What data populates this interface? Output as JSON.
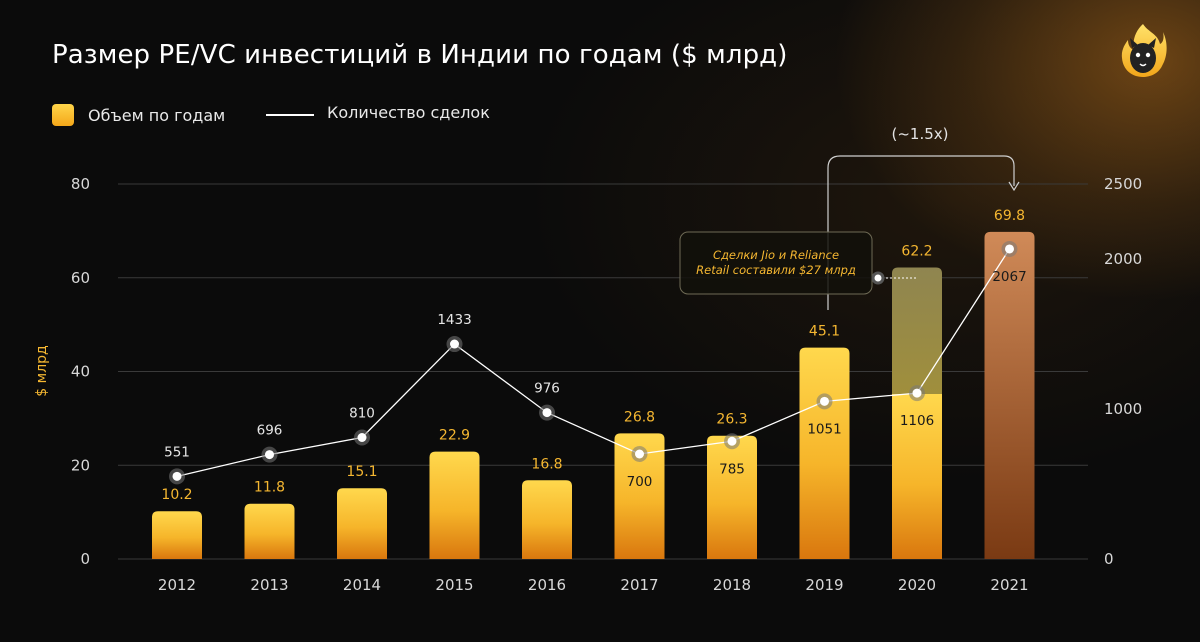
{
  "title": "Размер PE/VC инвестиций в Индии по годам ($ млрд)",
  "legend": {
    "bars_label": "Объем по годам",
    "line_label": "Количество сделок"
  },
  "colors": {
    "bar_top": "#ffd54a",
    "bar_bottom": "#e8810f",
    "bar_label": "#f5b731",
    "line": "#ffffff",
    "axis_text": "#d8d8d8",
    "highlight_2021_top": "#c8794a",
    "highlight_2021_bottom": "#7a3a13",
    "jio_overlay": "#9a8a4a"
  },
  "chart_data": {
    "type": "bar",
    "categories": [
      "2012",
      "2013",
      "2014",
      "2015",
      "2016",
      "2017",
      "2018",
      "2019",
      "2020",
      "2021"
    ],
    "series": [
      {
        "name": "Объем по годам",
        "type": "bar",
        "axis": "left",
        "values": [
          10.2,
          11.8,
          15.1,
          22.9,
          16.8,
          26.8,
          26.3,
          45.1,
          62.2,
          69.8
        ],
        "labels": [
          "10.2",
          "11.8",
          "15.1",
          "22.9",
          "16.8",
          "26.8",
          "26.3",
          "45.1",
          "62.2",
          "69.8"
        ]
      },
      {
        "name": "Количество сделок",
        "type": "line",
        "axis": "right",
        "values": [
          551,
          696,
          810,
          1433,
          976,
          700,
          785,
          1051,
          1106,
          2067
        ],
        "labels": [
          "551",
          "696",
          "810",
          "1433",
          "976",
          "700",
          "785",
          "1051",
          "1106",
          "2067"
        ]
      }
    ],
    "stacked_segment_2020": {
      "base": 35.2,
      "jio_reliance": 27.0
    },
    "ylabel": "$ млрд",
    "ylim": [
      0,
      80
    ],
    "yticks": [
      "0",
      "20",
      "40",
      "60",
      "80"
    ],
    "ylim_right": [
      0,
      2500
    ],
    "yticks_right": [
      {
        "value": 0,
        "label": "0"
      },
      {
        "value": 1000,
        "label": "1000"
      },
      {
        "value": 2000,
        "label": "2000"
      },
      {
        "value": 2500,
        "label": "2500"
      }
    ],
    "grid": true,
    "legend_position": "top-left",
    "annotations": {
      "growth": "(~1.5x)",
      "jio_note_line1": "Сделки Jio и Reliance",
      "jio_note_line2": "Retail составили $27 млрд"
    }
  }
}
